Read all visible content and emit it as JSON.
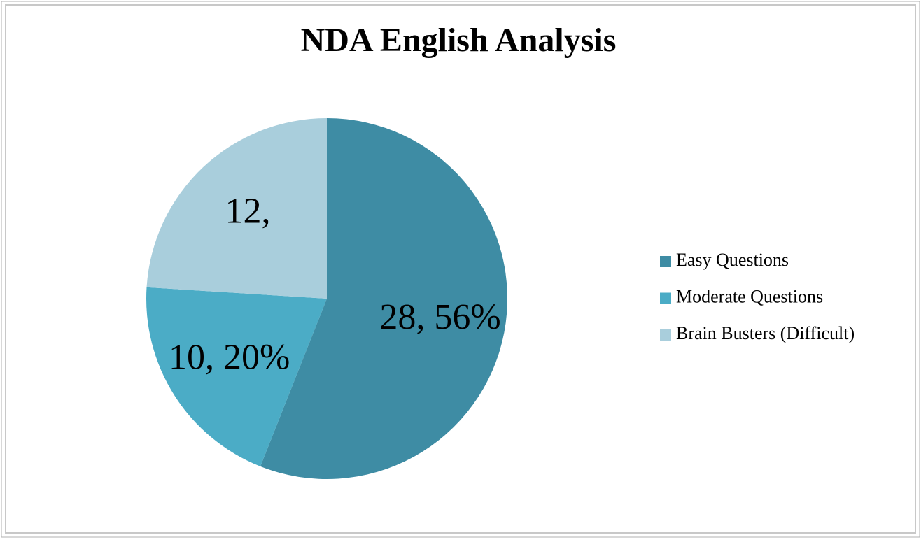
{
  "chart_data": {
    "type": "pie",
    "title": "NDA English Analysis",
    "categories": [
      "Easy Questions",
      "Moderate Questions",
      "Brain Busters (Difficult)"
    ],
    "values": [
      28,
      10,
      12
    ],
    "value_labels": [
      "28, 56%",
      "10, 20%",
      "12,"
    ],
    "colors": [
      "#3e8ca4",
      "#4bacc6",
      "#a9cedc"
    ],
    "legend": "right"
  }
}
